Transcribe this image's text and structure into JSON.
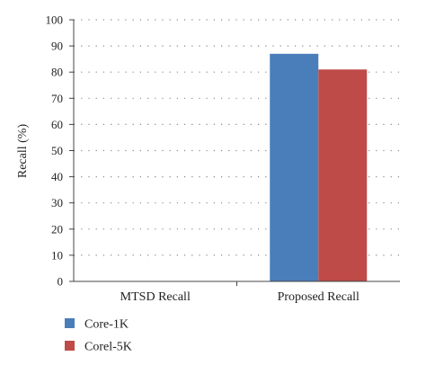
{
  "chart_data": {
    "type": "bar",
    "categories": [
      "MTSD Recall",
      "Proposed Recall"
    ],
    "series": [
      {
        "name": "Core-1K",
        "color": "#4a7ebb",
        "values": [
          null,
          87
        ]
      },
      {
        "name": "Corel-5K",
        "color": "#be4b48",
        "values": [
          null,
          81
        ]
      }
    ],
    "ylabel": "Recall (%)",
    "xlabel": "",
    "title": "",
    "ylim": [
      0,
      100
    ],
    "yticks": [
      0,
      10,
      20,
      30,
      40,
      50,
      60,
      70,
      80,
      90,
      100
    ],
    "grid": "dotted-horizontal",
    "legend_position": "bottom-left"
  }
}
